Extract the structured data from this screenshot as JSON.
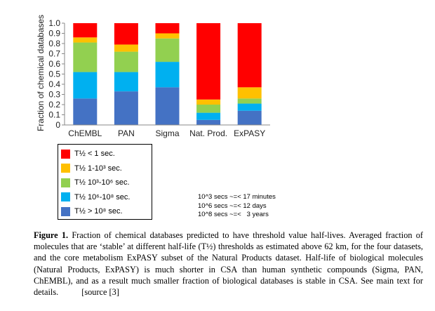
{
  "chart_data": {
    "type": "bar",
    "stacked": true,
    "ylabel": "Fraction of chemical databases",
    "ylim": [
      0,
      1.0
    ],
    "yticks": [
      "0",
      "0.1",
      "0.2",
      "0.3",
      "0.4",
      "0.5",
      "0.6",
      "0.7",
      "0.8",
      "0.9",
      "1.0"
    ],
    "categories": [
      "ChEMBL",
      "PAN",
      "Sigma",
      "Nat. Prod.",
      "ExPASY"
    ],
    "series": [
      {
        "name": "T½ > 10⁸ sec.",
        "color": "#4472c4",
        "values": [
          0.26,
          0.33,
          0.37,
          0.05,
          0.14
        ]
      },
      {
        "name": "T½ 10⁶-10⁸ sec.",
        "color": "#00b0f0",
        "values": [
          0.26,
          0.19,
          0.25,
          0.07,
          0.07
        ]
      },
      {
        "name": "T½ 10³-10⁶ sec.",
        "color": "#92d050",
        "values": [
          0.29,
          0.2,
          0.23,
          0.08,
          0.05
        ]
      },
      {
        "name": "T½ 1-10³ sec.",
        "color": "#ffc000",
        "values": [
          0.05,
          0.07,
          0.05,
          0.05,
          0.11
        ]
      },
      {
        "name": "T½ < 1 sec.",
        "color": "#ff0000",
        "values": [
          0.14,
          0.21,
          0.1,
          0.75,
          0.63
        ]
      }
    ],
    "legend_order": [
      4,
      3,
      2,
      1,
      0
    ],
    "legend_placement": "bottom-left",
    "grid": false
  },
  "notes": [
    "10^3 secs ~=< 17 minutes",
    "10^6 secs ~=< 12 days",
    "10^8 secs ~=<   3 years"
  ],
  "caption": {
    "label": "Figure 1.",
    "text": "Fraction of chemical databases predicted to have threshold value half-lives. Averaged fraction of molecules that are ‘stable’ at different half-life (T½) thresholds as estimated above 62 km, for the four datasets, and the core metabolism ExPASY subset of the Natural Products dataset. Half-life of biological molecules (Natural Products, ExPASY) is much shorter in CSA than human synthetic compounds (Sigma, PAN, ChEMBL), and as a result much smaller fraction of biological databases is stable in CSA. See main text for details.",
    "source": "[source [3]"
  }
}
